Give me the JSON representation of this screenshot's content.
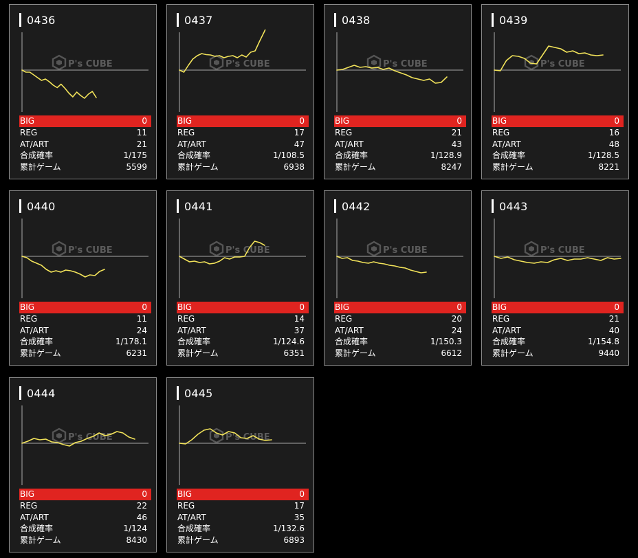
{
  "colors": {
    "background": "#000000",
    "panel": "#1c1c1c",
    "border": "#8a8a8a",
    "big_highlight": "#e02420",
    "graph_line": "#f2e35a",
    "axis": "#8c8c8c"
  },
  "watermark": {
    "brand": "P's CUBE",
    "icon": "cube-logo-icon"
  },
  "labels": {
    "big": "BIG",
    "reg": "REG",
    "at_art": "AT/ART",
    "combined_prob": "合成確率",
    "total_games": "累計ゲーム"
  },
  "machines": [
    {
      "number": "0436",
      "big": "0",
      "reg": "11",
      "at_art": "21",
      "prob": "1/175",
      "games": "5599",
      "trend": [
        0,
        -6,
        -6,
        -14,
        -22,
        -30,
        -26,
        -34,
        -44,
        -51,
        -41,
        -53,
        -67,
        -78,
        -64,
        -74,
        -82,
        -70,
        -62,
        -80
      ]
    },
    {
      "number": "0437",
      "big": "0",
      "reg": "17",
      "at_art": "47",
      "prob": "1/108.5",
      "games": "6938",
      "trend": [
        0,
        -6,
        14,
        32,
        42,
        48,
        45,
        44,
        40,
        42,
        36,
        40,
        42,
        36,
        44,
        38,
        52,
        56,
        84,
        110,
        138,
        150
      ]
    },
    {
      "number": "0438",
      "big": "0",
      "reg": "21",
      "at_art": "43",
      "prob": "1/128.9",
      "games": "8247",
      "trend": [
        0,
        2,
        8,
        14,
        8,
        10,
        6,
        8,
        2,
        6,
        -2,
        -8,
        -14,
        -22,
        -26,
        -30,
        -26,
        -38,
        -36,
        -20
      ]
    },
    {
      "number": "0439",
      "big": "0",
      "reg": "16",
      "at_art": "48",
      "prob": "1/128.5",
      "games": "8221",
      "trend": [
        0,
        -2,
        28,
        42,
        40,
        34,
        20,
        18,
        44,
        70,
        66,
        62,
        52,
        56,
        48,
        50,
        44,
        42,
        44
      ]
    },
    {
      "number": "0440",
      "big": "0",
      "reg": "11",
      "at_art": "24",
      "prob": "1/178.1",
      "games": "6231",
      "trend": [
        0,
        -4,
        -14,
        -20,
        -26,
        -38,
        -46,
        -42,
        -46,
        -40,
        -42,
        -46,
        -52,
        -60,
        -54,
        -56,
        -44,
        -38
      ]
    },
    {
      "number": "0441",
      "big": "0",
      "reg": "14",
      "at_art": "37",
      "prob": "1/124.6",
      "games": "6351",
      "trend": [
        0,
        -8,
        -16,
        -14,
        -18,
        -16,
        -22,
        -20,
        -14,
        -4,
        -8,
        -2,
        -2,
        0,
        26,
        44,
        40,
        32
      ]
    },
    {
      "number": "0442",
      "big": "0",
      "reg": "20",
      "at_art": "24",
      "prob": "1/150.3",
      "games": "6612",
      "trend": [
        0,
        -6,
        -4,
        -12,
        -14,
        -18,
        -20,
        -16,
        -20,
        -22,
        -26,
        -28,
        -32,
        -34,
        -40,
        -44,
        -48,
        -46
      ]
    },
    {
      "number": "0443",
      "big": "0",
      "reg": "21",
      "at_art": "40",
      "prob": "1/154.8",
      "games": "9440",
      "trend": [
        0,
        -6,
        -2,
        -10,
        -14,
        -18,
        -20,
        -16,
        -18,
        -10,
        -6,
        -12,
        -8,
        -8,
        -4,
        -8,
        -12,
        -4,
        -8,
        -6
      ]
    },
    {
      "number": "0444",
      "big": "0",
      "reg": "22",
      "at_art": "46",
      "prob": "1/124",
      "games": "8430",
      "trend": [
        0,
        6,
        14,
        10,
        12,
        4,
        2,
        -4,
        -8,
        2,
        6,
        14,
        20,
        30,
        22,
        26,
        34,
        30,
        18,
        12
      ]
    },
    {
      "number": "0445",
      "big": "0",
      "reg": "17",
      "at_art": "35",
      "prob": "1/132.6",
      "games": "6893",
      "trend": [
        0,
        -2,
        10,
        26,
        38,
        42,
        30,
        24,
        34,
        30,
        16,
        14,
        22,
        12,
        8,
        10
      ]
    }
  ]
}
